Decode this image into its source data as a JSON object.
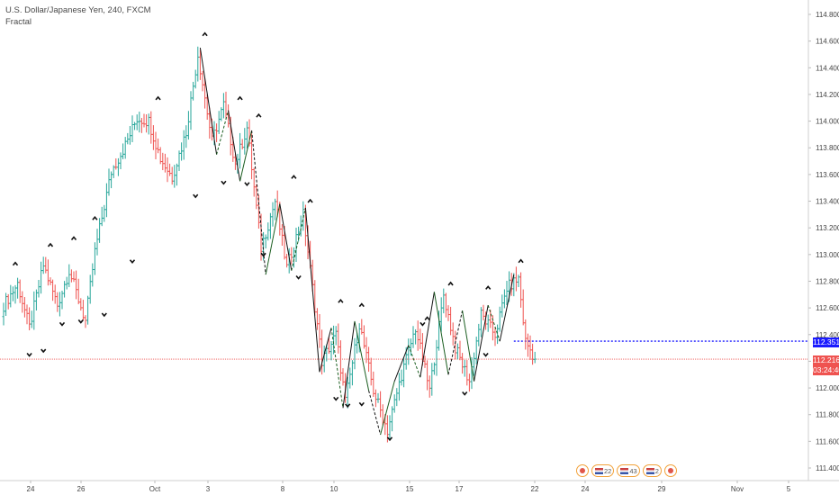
{
  "legend": {
    "symbol_line": "U.S. Dollar/Japanese Yen, 240, FXCM",
    "indicator": "Fractal"
  },
  "colors": {
    "up": "#26a69a",
    "down": "#ef5350",
    "last_price": "#ef5350",
    "level": "#1a1aff",
    "fractal_marker": "#111111"
  },
  "price_axis": {
    "min": 111.4,
    "max": 114.8,
    "ticks": [
      "114.800",
      "114.600",
      "114.400",
      "114.200",
      "114.000",
      "113.800",
      "113.600",
      "113.400",
      "113.200",
      "113.000",
      "112.800",
      "112.600",
      "112.400",
      "112.200",
      "112.000",
      "111.800",
      "111.600",
      "111.400"
    ]
  },
  "time_axis": {
    "labels": [
      "24",
      "26",
      "Oct",
      "3",
      "8",
      "10",
      "15",
      "17",
      "22",
      "24",
      "29",
      "Nov",
      "5"
    ]
  },
  "badges": {
    "level_price": "112.351",
    "last_price": "112.216",
    "countdown": "03:24:40"
  },
  "events": {
    "counts": [
      "2",
      "2",
      "4",
      "3",
      "2"
    ]
  },
  "chart_data": {
    "type": "ohlc",
    "title": "U.S. Dollar/Japanese Yen, 240, FXCM",
    "indicator": "Fractal",
    "ylim": [
      111.4,
      114.8
    ],
    "x_tick_labels": [
      "24",
      "26",
      "Oct",
      "3",
      "8",
      "10",
      "15",
      "17",
      "22",
      "24",
      "29",
      "Nov",
      "5"
    ],
    "anchors": [
      [
        0,
        112.62
      ],
      [
        6,
        112.78
      ],
      [
        11,
        112.45
      ],
      [
        17,
        112.92
      ],
      [
        23,
        112.62
      ],
      [
        28,
        112.88
      ],
      [
        35,
        112.5
      ],
      [
        39,
        113.02
      ],
      [
        46,
        113.62
      ],
      [
        52,
        113.82
      ],
      [
        57,
        114.02
      ],
      [
        62,
        114.0
      ],
      [
        67,
        113.72
      ],
      [
        72,
        113.58
      ],
      [
        78,
        113.92
      ],
      [
        83,
        114.5
      ],
      [
        89,
        113.85
      ],
      [
        94,
        114.12
      ],
      [
        99,
        113.68
      ],
      [
        104,
        113.95
      ],
      [
        110,
        113.05
      ],
      [
        116,
        113.4
      ],
      [
        121,
        112.9
      ],
      [
        128,
        113.3
      ],
      [
        136,
        112.2
      ],
      [
        142,
        112.4
      ],
      [
        146,
        111.9
      ],
      [
        152,
        112.48
      ],
      [
        158,
        111.98
      ],
      [
        164,
        111.68
      ],
      [
        170,
        112.1
      ],
      [
        176,
        112.45
      ],
      [
        182,
        111.98
      ],
      [
        188,
        112.7
      ],
      [
        193,
        112.3
      ],
      [
        199,
        112.05
      ],
      [
        204,
        112.55
      ],
      [
        210,
        112.4
      ],
      [
        215,
        112.75
      ],
      [
        220,
        112.82
      ],
      [
        223,
        112.35
      ],
      [
        227,
        112.22
      ]
    ],
    "last_close": 112.216,
    "horizontal_level": 112.351,
    "fractal_lines": [
      [
        [
          84,
          114.55
        ],
        [
          91,
          113.75
        ],
        [
          96,
          114.08
        ],
        [
          101,
          113.55
        ],
        [
          106,
          113.93
        ],
        [
          112,
          112.85
        ],
        [
          118,
          113.38
        ],
        [
          123,
          112.88
        ],
        [
          129,
          113.35
        ],
        [
          135,
          112.12
        ]
      ],
      [
        [
          135,
          112.12
        ],
        [
          140,
          112.45
        ],
        [
          145,
          111.85
        ],
        [
          150,
          112.5
        ],
        [
          156,
          111.98
        ],
        [
          161,
          111.65
        ],
        [
          167,
          112.05
        ],
        [
          173,
          112.32
        ],
        [
          178,
          112.08
        ],
        [
          184,
          112.72
        ],
        [
          190,
          112.1
        ],
        [
          196,
          112.58
        ],
        [
          201,
          112.05
        ],
        [
          207,
          112.62
        ],
        [
          212,
          112.35
        ],
        [
          218,
          112.85
        ]
      ]
    ],
    "fractals_up": [
      [
        5,
        112.93
      ],
      [
        20,
        113.07
      ],
      [
        30,
        113.12
      ],
      [
        39,
        113.27
      ],
      [
        66,
        114.17
      ],
      [
        86,
        114.65
      ],
      [
        101,
        114.17
      ],
      [
        109,
        114.04
      ],
      [
        124,
        113.58
      ],
      [
        131,
        113.4
      ],
      [
        144,
        112.65
      ],
      [
        153,
        112.62
      ],
      [
        181,
        112.52
      ],
      [
        191,
        112.78
      ],
      [
        207,
        112.75
      ],
      [
        221,
        112.95
      ]
    ],
    "fractals_down": [
      [
        11,
        112.25
      ],
      [
        17,
        112.28
      ],
      [
        25,
        112.48
      ],
      [
        33,
        112.5
      ],
      [
        43,
        112.55
      ],
      [
        55,
        112.95
      ],
      [
        82,
        113.44
      ],
      [
        94,
        113.54
      ],
      [
        104,
        113.53
      ],
      [
        111,
        113.0
      ],
      [
        126,
        112.83
      ],
      [
        142,
        111.92
      ],
      [
        147,
        111.87
      ],
      [
        153,
        111.88
      ],
      [
        165,
        111.62
      ],
      [
        179,
        112.48
      ],
      [
        197,
        111.96
      ],
      [
        206,
        112.25
      ]
    ]
  }
}
